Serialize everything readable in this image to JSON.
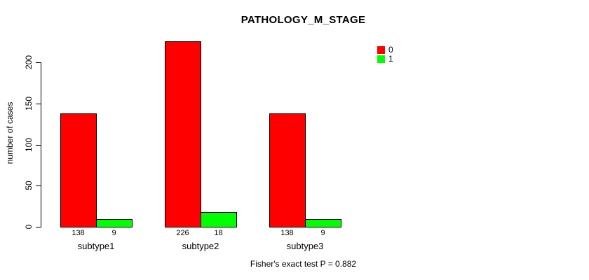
{
  "chart_data": {
    "type": "bar",
    "title": "PATHOLOGY_M_STAGE",
    "ylabel": "number of cases",
    "xlabel": "",
    "categories": [
      "subtype1",
      "subtype2",
      "subtype3"
    ],
    "series": [
      {
        "name": "0",
        "color": "#ff0000",
        "values": [
          138,
          226,
          138
        ]
      },
      {
        "name": "1",
        "color": "#00ff00",
        "values": [
          9,
          18,
          9
        ]
      }
    ],
    "yticks": [
      0,
      50,
      100,
      150,
      200
    ],
    "ylim": [
      0,
      200
    ],
    "grid": false,
    "legend_position": "top-right",
    "bar_border_color": "#000000",
    "annotation": "Fisher's exact test P = 0.882"
  }
}
